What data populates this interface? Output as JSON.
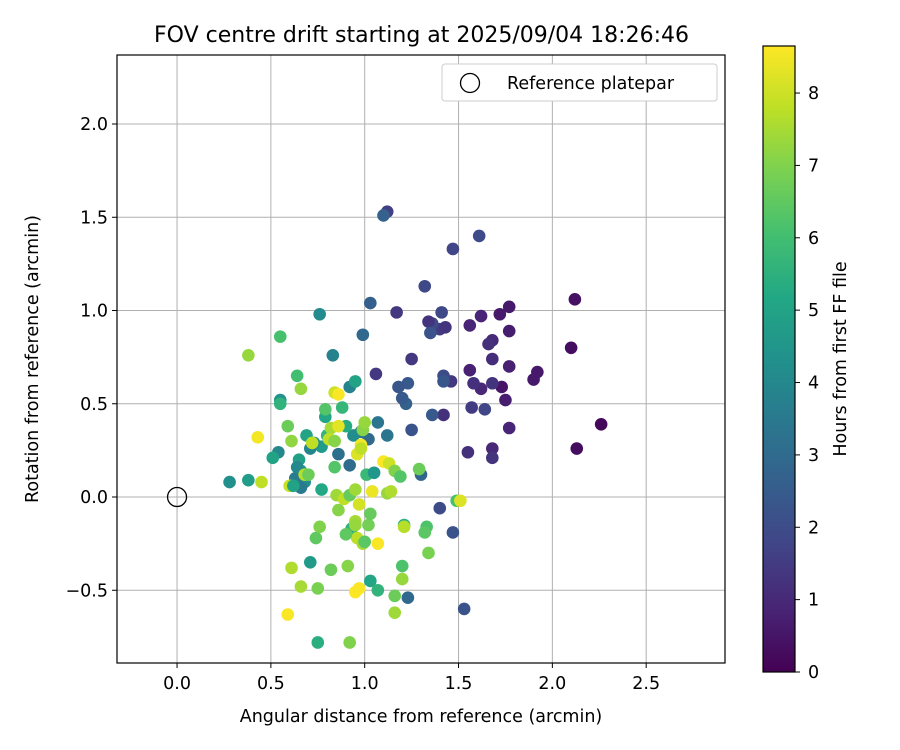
{
  "chart_data": {
    "type": "scatter",
    "title": "FOV centre drift starting at 2025/09/04 18:26:46",
    "xlabel": "Angular distance from reference (arcmin)",
    "ylabel": "Rotation from reference (arcmin)",
    "xlim": [
      -0.32,
      2.92
    ],
    "ylim": [
      -0.89,
      2.37
    ],
    "xticks": [
      0.0,
      0.5,
      1.0,
      1.5,
      2.0,
      2.5
    ],
    "xtick_labels": [
      "0.0",
      "0.5",
      "1.0",
      "1.5",
      "2.0",
      "2.5"
    ],
    "yticks": [
      -0.5,
      0.0,
      0.5,
      1.0,
      1.5,
      2.0
    ],
    "ytick_labels": [
      "−0.5",
      "0.0",
      "0.5",
      "1.0",
      "1.5",
      "2.0"
    ],
    "grid": true,
    "legend": {
      "placement": "top-right",
      "label": "Reference platepar"
    },
    "reference": {
      "x": 0.0,
      "y": 0.0
    },
    "colorbar": {
      "label": "Hours from first FF file",
      "colormap": "viridis",
      "range": [
        0,
        8.65
      ],
      "ticks": [
        0,
        1,
        2,
        3,
        4,
        5,
        6,
        7,
        8
      ],
      "tick_labels": [
        "0",
        "1",
        "2",
        "3",
        "4",
        "5",
        "6",
        "7",
        "8"
      ]
    },
    "points": [
      [
        2.26,
        0.39,
        0.2
      ],
      [
        2.13,
        0.26,
        0.3
      ],
      [
        2.12,
        1.06,
        0.4
      ],
      [
        2.1,
        0.8,
        0.3
      ],
      [
        1.92,
        0.67,
        0.6
      ],
      [
        1.9,
        0.63,
        0.6
      ],
      [
        1.77,
        1.02,
        0.6
      ],
      [
        1.77,
        0.89,
        0.7
      ],
      [
        1.77,
        0.7,
        0.8
      ],
      [
        1.77,
        0.37,
        0.9
      ],
      [
        1.75,
        0.52,
        0.7
      ],
      [
        1.72,
        0.98,
        0.6
      ],
      [
        1.73,
        0.59,
        0.5
      ],
      [
        1.68,
        0.74,
        1.1
      ],
      [
        1.68,
        0.84,
        1.0
      ],
      [
        1.66,
        0.82,
        1.2
      ],
      [
        1.68,
        0.26,
        1.0
      ],
      [
        1.68,
        0.21,
        1.3
      ],
      [
        1.68,
        0.61,
        1.3
      ],
      [
        1.62,
        0.97,
        0.9
      ],
      [
        1.62,
        0.58,
        1.0
      ],
      [
        1.58,
        0.61,
        1.2
      ],
      [
        1.56,
        0.92,
        0.9
      ],
      [
        1.56,
        0.68,
        0.8
      ],
      [
        1.55,
        0.24,
        1.2
      ],
      [
        1.57,
        0.48,
        1.5
      ],
      [
        1.64,
        0.47,
        1.8
      ],
      [
        1.61,
        1.4,
        2.0
      ],
      [
        1.53,
        -0.6,
        2.2
      ],
      [
        1.47,
        1.33,
        1.8
      ],
      [
        1.47,
        -0.19,
        2.2
      ],
      [
        1.46,
        0.62,
        1.4
      ],
      [
        1.42,
        0.65,
        2.0
      ],
      [
        1.42,
        0.62,
        2.3
      ],
      [
        1.41,
        0.99,
        1.9
      ],
      [
        1.42,
        0.44,
        1.2
      ],
      [
        1.4,
        -0.06,
        2.0
      ],
      [
        1.4,
        0.9,
        1.5
      ],
      [
        1.43,
        0.91,
        1.3
      ],
      [
        1.36,
        0.93,
        2.0
      ],
      [
        1.34,
        0.94,
        1.3
      ],
      [
        1.35,
        0.88,
        2.2
      ],
      [
        1.36,
        0.44,
        2.4
      ],
      [
        1.32,
        1.13,
        1.9
      ],
      [
        1.3,
        0.12,
        2.8
      ],
      [
        1.25,
        0.74,
        1.4
      ],
      [
        1.25,
        0.36,
        2.2
      ],
      [
        1.23,
        0.61,
        2.4
      ],
      [
        1.22,
        0.5,
        2.7
      ],
      [
        1.2,
        0.53,
        2.4
      ],
      [
        1.18,
        0.59,
        2.3
      ],
      [
        1.17,
        0.99,
        1.4
      ],
      [
        1.23,
        -0.54,
        2.9
      ],
      [
        1.12,
        1.53,
        1.6
      ],
      [
        1.1,
        1.51,
        2.7
      ],
      [
        1.06,
        0.66,
        1.4
      ],
      [
        1.03,
        1.04,
        2.6
      ],
      [
        0.99,
        0.87,
        2.9
      ],
      [
        1.07,
        0.4,
        3.4
      ],
      [
        1.12,
        0.33,
        3.4
      ],
      [
        1.02,
        0.31,
        3.0
      ],
      [
        0.98,
        0.35,
        3.4
      ],
      [
        0.94,
        0.33,
        4.2
      ],
      [
        0.92,
        0.17,
        3.0
      ],
      [
        0.86,
        0.23,
        3.2
      ],
      [
        0.83,
        0.76,
        3.8
      ],
      [
        0.92,
        0.59,
        3.8
      ],
      [
        0.95,
        0.62,
        5.0
      ],
      [
        0.9,
        0.38,
        5.3
      ],
      [
        0.88,
        0.48,
        5.7
      ],
      [
        0.8,
        0.33,
        5.6
      ],
      [
        0.79,
        0.43,
        5.1
      ],
      [
        0.76,
        0.98,
        4.1
      ],
      [
        0.77,
        0.27,
        4.7
      ],
      [
        0.73,
        0.29,
        4.3
      ],
      [
        0.71,
        0.26,
        3.9
      ],
      [
        0.69,
        0.33,
        5.0
      ],
      [
        0.65,
        0.2,
        4.9
      ],
      [
        0.66,
        0.14,
        4.5
      ],
      [
        0.68,
        0.08,
        4.2
      ],
      [
        0.66,
        0.05,
        3.5
      ],
      [
        0.63,
        0.1,
        3.6
      ],
      [
        0.64,
        0.16,
        4.0
      ],
      [
        0.55,
        0.52,
        4.4
      ],
      [
        0.55,
        0.5,
        5.6
      ],
      [
        0.54,
        0.24,
        4.0
      ],
      [
        0.51,
        0.21,
        5.0
      ],
      [
        0.55,
        0.86,
        6.1
      ],
      [
        0.38,
        0.76,
        7.3
      ],
      [
        0.38,
        0.09,
        4.8
      ],
      [
        0.28,
        0.08,
        4.3
      ],
      [
        0.43,
        0.32,
        8.5
      ],
      [
        0.45,
        0.08,
        7.8
      ],
      [
        0.59,
        0.38,
        6.7
      ],
      [
        0.61,
        0.3,
        7.2
      ],
      [
        0.64,
        0.65,
        6.0
      ],
      [
        0.66,
        0.58,
        7.3
      ],
      [
        0.68,
        0.12,
        7.7
      ],
      [
        0.7,
        0.12,
        6.7
      ],
      [
        0.71,
        -0.35,
        4.7
      ],
      [
        0.74,
        -0.22,
        6.5
      ],
      [
        0.76,
        -0.16,
        7.0
      ],
      [
        0.77,
        0.04,
        5.2
      ],
      [
        0.79,
        0.47,
        6.3
      ],
      [
        0.82,
        0.37,
        7.5
      ],
      [
        0.81,
        0.31,
        7.8
      ],
      [
        0.84,
        0.56,
        8.0
      ],
      [
        0.86,
        0.55,
        8.6
      ],
      [
        0.86,
        0.38,
        8.3
      ],
      [
        0.84,
        0.3,
        7.1
      ],
      [
        0.84,
        0.16,
        6.3
      ],
      [
        0.85,
        0.01,
        7.4
      ],
      [
        0.86,
        -0.07,
        7.1
      ],
      [
        0.89,
        -0.01,
        7.8
      ],
      [
        0.92,
        0.01,
        6.6
      ],
      [
        0.95,
        0.04,
        7.4
      ],
      [
        0.96,
        0.23,
        8.2
      ],
      [
        0.99,
        0.36,
        7.1
      ],
      [
        1.0,
        0.4,
        7.3
      ],
      [
        0.98,
        0.28,
        8.5
      ],
      [
        0.98,
        0.26,
        7.8
      ],
      [
        0.97,
        -0.04,
        8.1
      ],
      [
        0.95,
        -0.13,
        7.5
      ],
      [
        0.93,
        -0.17,
        5.6
      ],
      [
        0.95,
        -0.15,
        7.3
      ],
      [
        0.96,
        -0.22,
        7.8
      ],
      [
        0.99,
        -0.25,
        7.5
      ],
      [
        1.0,
        -0.24,
        6.4
      ],
      [
        1.02,
        -0.15,
        6.8
      ],
      [
        1.03,
        -0.09,
        6.6
      ],
      [
        1.04,
        0.03,
        8.4
      ],
      [
        1.01,
        0.12,
        5.8
      ],
      [
        1.05,
        0.13,
        4.5
      ],
      [
        1.07,
        -0.25,
        8.6
      ],
      [
        1.03,
        -0.45,
        5.1
      ],
      [
        1.07,
        -0.5,
        5.6
      ],
      [
        0.95,
        -0.51,
        8.7
      ],
      [
        0.97,
        -0.49,
        8.6
      ],
      [
        0.92,
        -0.78,
        7.0
      ],
      [
        0.91,
        -0.37,
        7.1
      ],
      [
        0.9,
        -0.2,
        6.5
      ],
      [
        0.82,
        -0.39,
        6.7
      ],
      [
        0.75,
        -0.49,
        6.9
      ],
      [
        0.66,
        -0.48,
        7.5
      ],
      [
        0.61,
        -0.38,
        7.6
      ],
      [
        0.59,
        -0.63,
        8.6
      ],
      [
        0.75,
        -0.78,
        5.4
      ],
      [
        1.1,
        0.19,
        8.6
      ],
      [
        1.13,
        0.18,
        8.0
      ],
      [
        1.12,
        0.02,
        7.3
      ],
      [
        1.14,
        0.03,
        7.6
      ],
      [
        1.16,
        0.14,
        7.0
      ],
      [
        1.19,
        0.11,
        6.3
      ],
      [
        1.21,
        -0.15,
        5.5
      ],
      [
        1.21,
        -0.16,
        7.7
      ],
      [
        1.2,
        -0.37,
        6.2
      ],
      [
        1.2,
        -0.44,
        7.3
      ],
      [
        1.16,
        -0.53,
        6.7
      ],
      [
        1.16,
        -0.62,
        7.4
      ],
      [
        1.29,
        0.15,
        6.7
      ],
      [
        1.33,
        -0.16,
        6.2
      ],
      [
        1.32,
        -0.19,
        6.4
      ],
      [
        1.34,
        -0.3,
        6.9
      ],
      [
        1.49,
        -0.02,
        6.1
      ],
      [
        1.51,
        -0.02,
        8.2
      ],
      [
        0.6,
        0.06,
        7.9
      ],
      [
        0.72,
        0.29,
        7.8
      ],
      [
        0.62,
        0.06,
        5.0
      ]
    ]
  }
}
